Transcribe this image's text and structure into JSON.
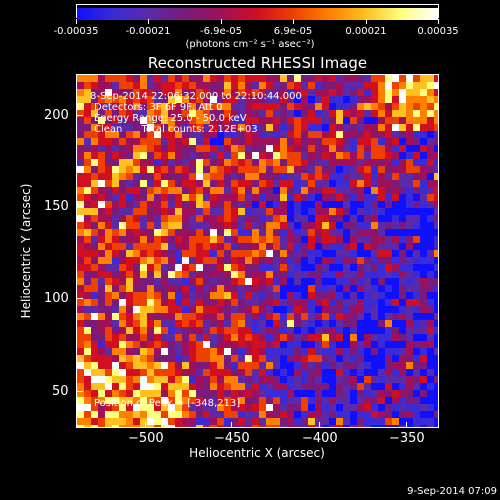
{
  "colorbar": {
    "tick_labels": [
      "-0.00035",
      "-0.00021",
      "-6.9e-05",
      "6.9e-05",
      "0.00021",
      "0.00035"
    ],
    "units": "(photons cm⁻² s⁻¹ asec⁻²)",
    "colors": [
      "#1010ff",
      "#3a2bd6",
      "#5a2aa8",
      "#7a1a7a",
      "#a0105a",
      "#d01020",
      "#f04000",
      "#ff8000",
      "#ffc020",
      "#ffff80",
      "#ffffff"
    ]
  },
  "chart_data": {
    "type": "heatmap",
    "title": "Reconstructed RHESSI Image",
    "xlabel": "Heliocentric X (arcsec)",
    "ylabel": "Heliocentric Y (arcsec)",
    "xlim": [
      -537,
      -344
    ],
    "ylim": [
      33,
      222
    ],
    "x_ticks": [
      -500,
      -450,
      -400,
      -350
    ],
    "x_tick_labels": [
      "−500",
      "−450",
      "−400",
      "−350"
    ],
    "y_ticks": [
      50,
      100,
      150,
      200
    ],
    "y_tick_labels": [
      "50",
      "100",
      "150",
      "200"
    ],
    "color_range": [
      -0.00035,
      0.00035
    ],
    "grid": false
  },
  "annotations": {
    "time": "8-Sep-2014 22:06:32.000 to 22:10:44.000",
    "detectors": "Detectors: 3F 6F 9F, Att 0",
    "energy": "Energy Range: 25.0 - 50.0 keV",
    "clean": "Clean      Total counts: 2.12E+03",
    "peak": "Position of Peak = [-348,213]"
  },
  "footer": {
    "date": "9-Sep-2014 07:09"
  }
}
